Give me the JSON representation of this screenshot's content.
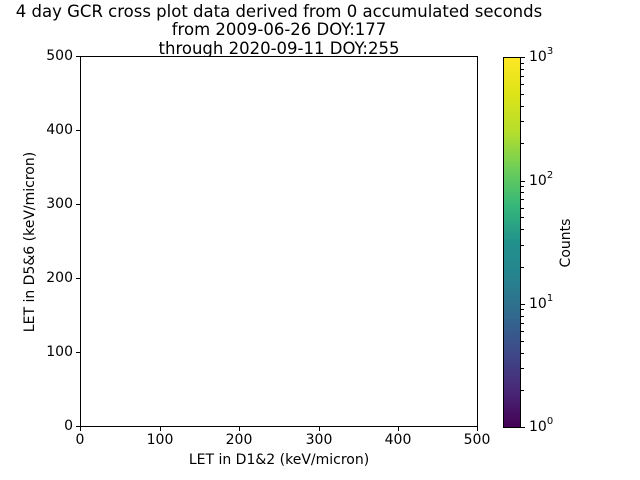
{
  "title": {
    "lines": [
      "4 day GCR cross plot data derived from 0 accumulated seconds",
      "from 2009-06-26 DOY:177",
      "through 2020-09-11 DOY:255"
    ]
  },
  "x_axis": {
    "label": "LET in D1&2 (keV/micron)",
    "tick_labels": [
      "0",
      "100",
      "200",
      "300",
      "400",
      "500"
    ]
  },
  "y_axis": {
    "label": "LET in D5&6 (keV/micron)",
    "tick_labels": [
      "0",
      "100",
      "200",
      "300",
      "400",
      "500"
    ]
  },
  "colorbar": {
    "label": "Counts",
    "tick_labels": [
      {
        "base": "10",
        "exp": "0"
      },
      {
        "base": "10",
        "exp": "1"
      },
      {
        "base": "10",
        "exp": "2"
      },
      {
        "base": "10",
        "exp": "3"
      }
    ],
    "colormap": "viridis",
    "gradient_stops": [
      "#440154",
      "#482878",
      "#3e4989",
      "#31688e",
      "#26828e",
      "#21918c",
      "#35b779",
      "#6ece58",
      "#b5de2b",
      "#dde318",
      "#fde725"
    ]
  },
  "chart_data": {
    "type": "heatmap",
    "title": "4 day GCR cross plot data derived from 0 accumulated seconds from 2009-06-26 DOY:177 through 2020-09-11 DOY:255",
    "xlabel": "LET in D1&2 (keV/micron)",
    "ylabel": "LET in D5&6 (keV/micron)",
    "xlim": [
      0,
      500
    ],
    "ylim": [
      0,
      500
    ],
    "x_ticks": [
      0,
      100,
      200,
      300,
      400,
      500
    ],
    "y_ticks": [
      0,
      100,
      200,
      300,
      400,
      500
    ],
    "points": [],
    "grid": false,
    "legend_position": "none",
    "colorbar": {
      "label": "Counts",
      "scale": "log",
      "range": [
        1,
        1000
      ],
      "colormap": "viridis",
      "position": "right"
    }
  }
}
